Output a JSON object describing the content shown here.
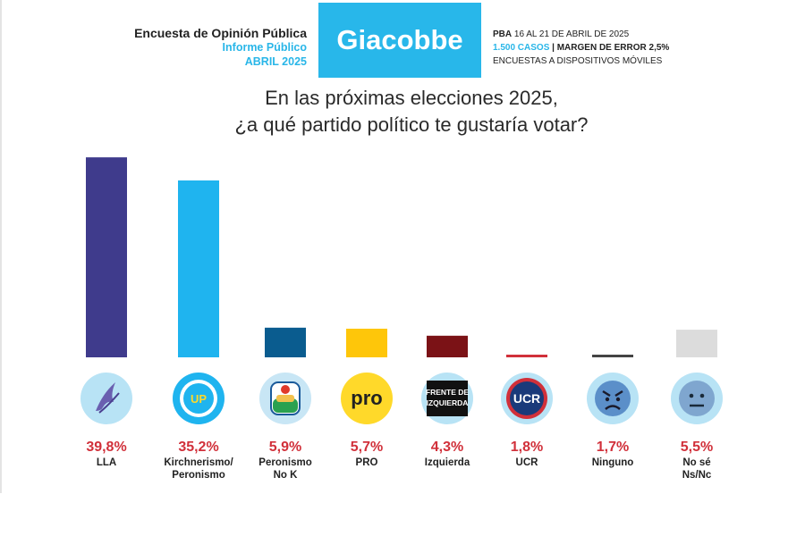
{
  "header": {
    "left_line1": "Encuesta de Opinión Pública",
    "left_line2": "Informe Público",
    "left_line3": "ABRIL 2025",
    "brand": "Giacobbe",
    "right_line1_bold": "PBA",
    "right_line1_rest": " 16 AL 21 DE ABRIL DE 2025",
    "right_line2_cyan": "1.500 CASOS",
    "right_line2_rest": " | MARGEN DE ERROR 2,5%",
    "right_line3": "ENCUESTAS A DISPOSITIVOS MÓVILES"
  },
  "question": {
    "line1": "En las próximas elecciones 2025,",
    "line2": "¿a qué partido político te gustaría votar?"
  },
  "chart_data": {
    "type": "bar",
    "title": "En las próximas elecciones 2025, ¿a qué partido político te gustaría votar?",
    "unit": "%",
    "ylim": [
      0,
      40
    ],
    "categories": [
      "LLA",
      "Kirchnerismo/ Peronismo",
      "Peronismo No K",
      "PRO",
      "Izquierda",
      "UCR",
      "Ninguno",
      "No sé Ns/Nc"
    ],
    "values": [
      39.8,
      35.2,
      5.9,
      5.7,
      4.3,
      1.8,
      1.7,
      5.5
    ],
    "value_labels": [
      "39,8%",
      "35,2%",
      "5,9%",
      "5,7%",
      "4,3%",
      "1,8%",
      "1,7%",
      "5,5%"
    ],
    "name_lines": [
      [
        "LLA"
      ],
      [
        "Kirchnerismo/",
        "Peronismo"
      ],
      [
        "Peronismo",
        "No K"
      ],
      [
        "PRO"
      ],
      [
        "Izquierda"
      ],
      [
        "UCR"
      ],
      [
        "Ninguno"
      ],
      [
        "No sé",
        "Ns/Nc"
      ]
    ],
    "colors": [
      "#3f3b8c",
      "#1fb4ef",
      "#0a5c8f",
      "#fec60a",
      "#7b1216",
      "#d1303a",
      "#444444",
      "#dcdcdc"
    ],
    "icons": [
      "lla-dove-icon",
      "up-logo-icon",
      "pj-logo-icon",
      "pro-logo-icon",
      "fit-logo-icon",
      "ucr-logo-icon",
      "angry-face-icon",
      "neutral-face-icon"
    ],
    "icon_texts": {
      "up": "UP",
      "pro": "pro",
      "fit1": "FRENTE DE",
      "fit2": "IZQUIERDA",
      "ucr": "UCR"
    }
  }
}
